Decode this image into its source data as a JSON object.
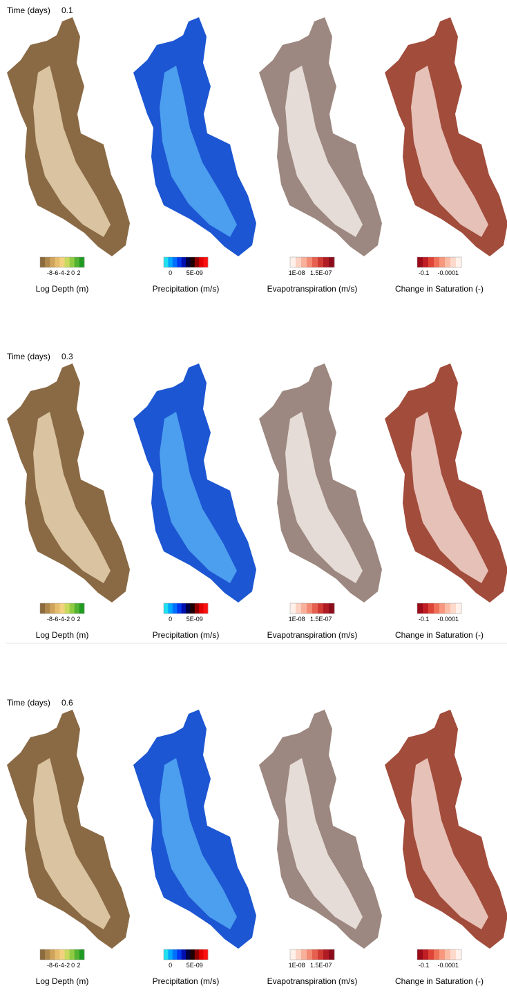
{
  "rows": [
    {
      "label": "Time (days)",
      "time": "0.1"
    },
    {
      "label": "Time (days)",
      "time": "0.3"
    },
    {
      "label": "Time (days)",
      "time": "0.6"
    }
  ],
  "colorbars": [
    {
      "title": "Log Depth (m)",
      "ticks": [
        "-8",
        "-6",
        "-4",
        "-2",
        "0",
        "2"
      ],
      "colors": [
        "#8c6b3c",
        "#ad874c",
        "#cfa35c",
        "#e6bd6c",
        "#f2d27e",
        "#c9d95e",
        "#8fcb42",
        "#52b232",
        "#1f9a22"
      ]
    },
    {
      "title": "Precipitation (m/s)",
      "ticks": [
        "0",
        "5E-09"
      ],
      "colors": [
        "#20e0f0",
        "#00a8ff",
        "#0070ff",
        "#0038f0",
        "#0010b0",
        "#000040",
        "#200000",
        "#900000",
        "#e00000",
        "#ff1010"
      ]
    },
    {
      "title": "Evapotranspiration (m/s)",
      "ticks": [
        "1E-08",
        "1.5E-07"
      ],
      "colors": [
        "#fff0ea",
        "#fcd2c2",
        "#f9b09a",
        "#f38a74",
        "#e6604f",
        "#cf3a33",
        "#b01c24",
        "#8c0c1c"
      ]
    },
    {
      "title": "Change in Saturation (-)",
      "ticks": [
        "-0.1",
        "-0.0001"
      ],
      "colors": [
        "#9a0a18",
        "#c01d24",
        "#de4436",
        "#ef6f57",
        "#f7987e",
        "#fbbca6",
        "#fdd9cc",
        "#fff1ec"
      ]
    }
  ]
}
